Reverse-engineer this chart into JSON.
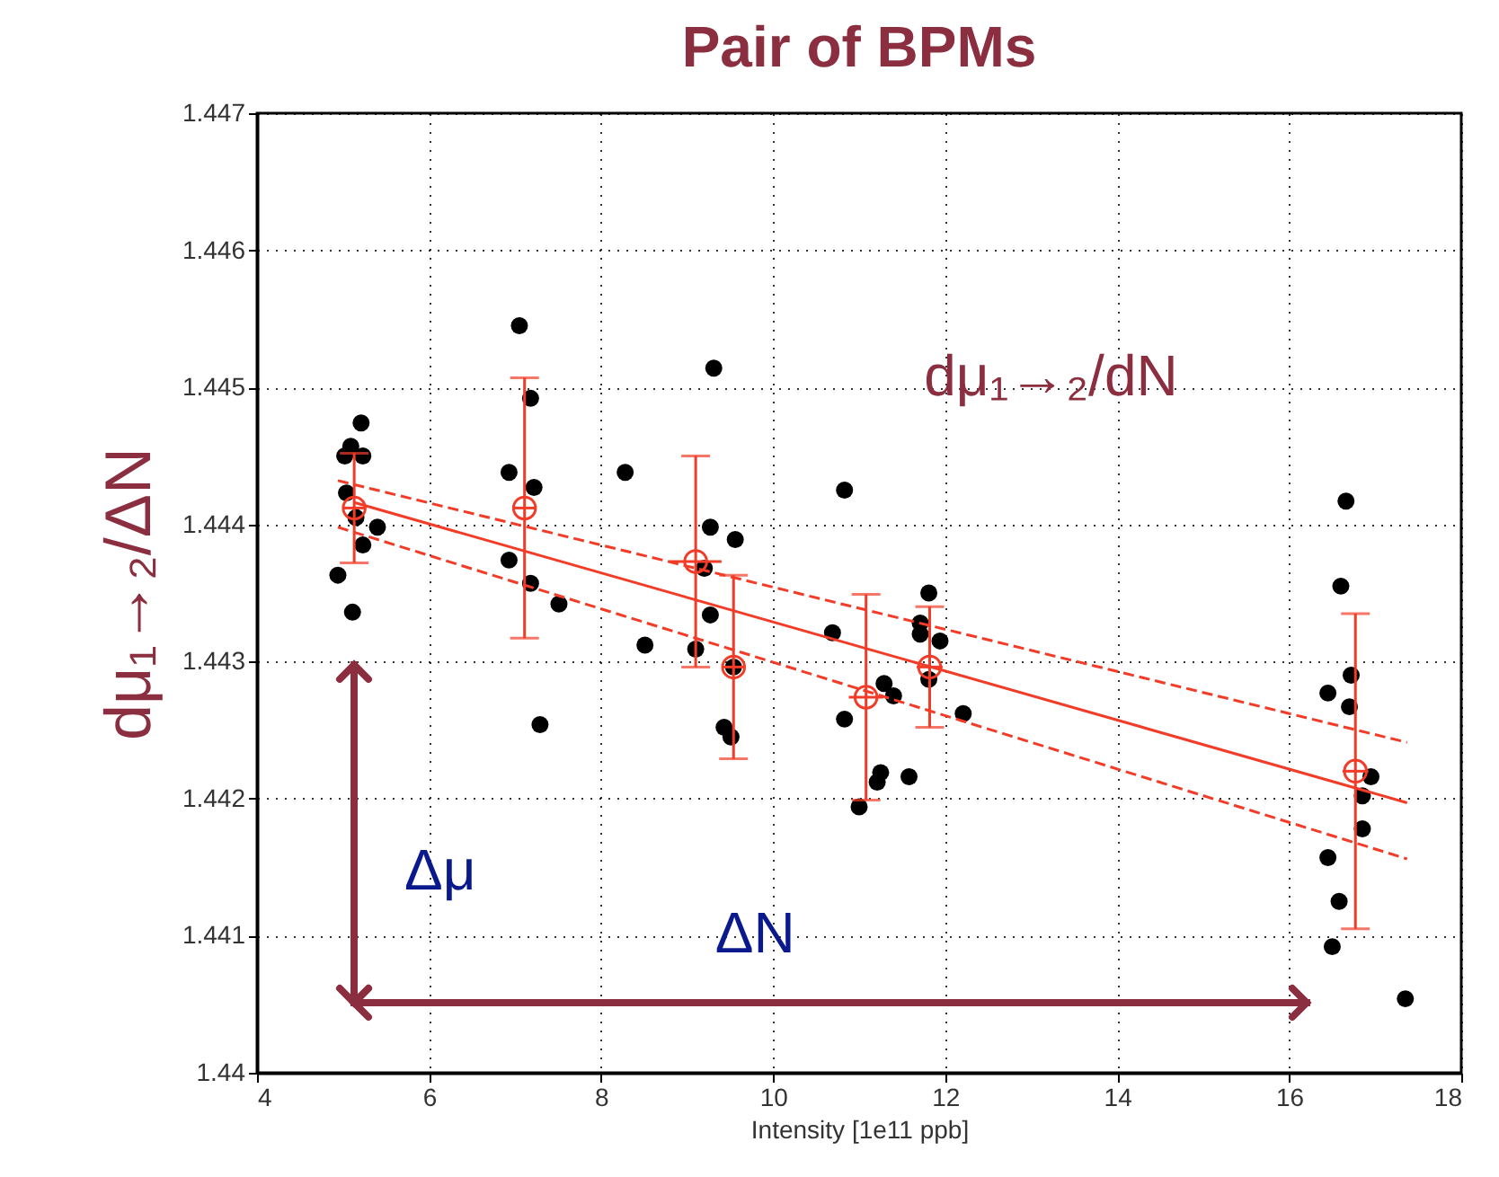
{
  "chart_data": {
    "type": "scatter",
    "title": "Pair of BPMs",
    "xlabel": "Intensity [1e11 ppb]",
    "ylabel": "dμ₁→₂/ΔN",
    "xlim": [
      4,
      18
    ],
    "xticks": [
      4,
      6,
      8,
      10,
      12,
      14,
      16,
      18
    ],
    "ylim": [
      1.44,
      1.447
    ],
    "yticks": [
      1.44,
      1.441,
      1.442,
      1.443,
      1.444,
      1.445,
      1.446,
      1.447
    ],
    "grid": true,
    "series": [
      {
        "marker": "circle",
        "color": "#000000",
        "x": [
          5.21,
          5.09,
          5.02,
          5.23,
          5.04,
          5.15,
          5.4,
          5.23,
          4.94,
          5.11,
          7.05,
          7.18,
          6.93,
          7.22,
          6.93,
          7.18,
          7.51,
          7.29,
          8.28,
          8.51,
          9.31,
          9.27,
          9.56,
          9.2,
          9.27,
          9.1,
          9.43,
          9.51,
          9.54,
          10.83,
          10.69,
          10.83,
          11.29,
          11.4,
          11.25,
          11.21,
          11.0,
          11.58,
          11.81,
          11.71,
          11.71,
          11.94,
          11.81,
          12.21,
          16.66,
          16.6,
          16.72,
          16.45,
          16.7,
          16.95,
          16.85,
          16.85,
          16.45,
          16.58,
          16.5,
          17.35
        ],
        "values": [
          1.44474,
          1.44457,
          1.4445,
          1.4445,
          1.44423,
          1.44405,
          1.44398,
          1.44385,
          1.44363,
          1.44336,
          1.44545,
          1.44492,
          1.44438,
          1.44427,
          1.44374,
          1.44357,
          1.44342,
          1.44254,
          1.44438,
          1.44312,
          1.44514,
          1.44398,
          1.44389,
          1.44368,
          1.44334,
          1.44309,
          1.44252,
          1.44245,
          1.44296,
          1.44425,
          1.44321,
          1.44258,
          1.44284,
          1.44275,
          1.44219,
          1.44212,
          1.44194,
          1.44216,
          1.4435,
          1.44328,
          1.4432,
          1.44315,
          1.44287,
          1.44262,
          1.44417,
          1.44355,
          1.4429,
          1.44277,
          1.44267,
          1.44216,
          1.44202,
          1.44178,
          1.44157,
          1.44125,
          1.44092,
          1.44054
        ]
      },
      {
        "marker": "circle",
        "color": "#f23c28",
        "x": [
          5.13,
          7.11,
          9.1,
          9.54,
          11.08,
          11.82,
          16.77
        ],
        "values": [
          1.44412,
          1.44412,
          1.44373,
          1.44296,
          1.44274,
          1.44296,
          1.4422
        ],
        "errors": [
          0.0004,
          0.00095,
          0.00077,
          0.00067,
          0.00075,
          0.00044,
          0.00115
        ],
        "xerrors": [
          0.12,
          0.12,
          0.3,
          0.12,
          0.2,
          0.15,
          0.15
        ]
      },
      {
        "type": "line",
        "line_style": "solid",
        "color": "#f23c28",
        "x": [
          5.13,
          17.37
        ],
        "values": [
          1.44416,
          1.44197
        ]
      },
      {
        "type": "line",
        "line_style": "dashed",
        "color": "#f23c28",
        "x": [
          4.94,
          17.37
        ],
        "values": [
          1.44432,
          1.44241
        ]
      },
      {
        "type": "line",
        "line_style": "dashed",
        "color": "#f23c28",
        "x": [
          4.94,
          17.37
        ],
        "values": [
          1.44398,
          1.44156
        ]
      }
    ],
    "annotations": [
      "dμ₁→₂/dN",
      "Δμ",
      "ΔN"
    ]
  }
}
